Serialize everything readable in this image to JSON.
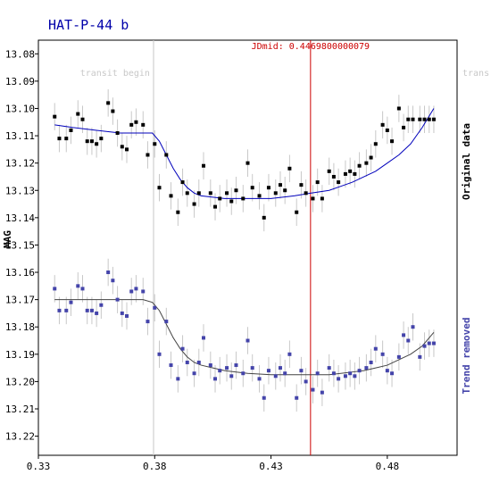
{
  "chart_data": {
    "type": "scatter",
    "title": "HAT-P-44 b",
    "ylabel": "MAG",
    "xlim": [
      0.33,
      0.51
    ],
    "ylim": [
      13.075,
      13.227
    ],
    "y_inverted": true,
    "x_ticks": [
      "0.33",
      "0.38",
      "0.43",
      "0.48"
    ],
    "x_tick_values": [
      0.33,
      0.38,
      0.43,
      0.48
    ],
    "y_ticks": [
      "13.08",
      "13.09",
      "13.10",
      "13.11",
      "13.12",
      "13.13",
      "13.14",
      "13.15",
      "13.16",
      "13.17",
      "13.18",
      "13.19",
      "13.20",
      "13.21",
      "13.22"
    ],
    "y_tick_values": [
      13.08,
      13.09,
      13.1,
      13.11,
      13.12,
      13.13,
      13.14,
      13.15,
      13.16,
      13.17,
      13.18,
      13.19,
      13.2,
      13.21,
      13.22
    ],
    "vlines": [
      {
        "name": "transit begin",
        "label": "transit begin",
        "x": 0.3795,
        "color": "#c8c8c8"
      },
      {
        "name": "JDmid",
        "label": "JDmid: 0.4469800000079",
        "x": 0.447,
        "color": "#cc0000"
      },
      {
        "name": "transit end",
        "label": "trans",
        "x": 0.5135,
        "color": "#c8c8c8"
      }
    ],
    "series": [
      {
        "name": "Original data",
        "color": "#000000",
        "fit_color": "#0000bb",
        "x": [
          0.337,
          0.339,
          0.342,
          0.344,
          0.347,
          0.349,
          0.351,
          0.353,
          0.355,
          0.357,
          0.36,
          0.362,
          0.364,
          0.366,
          0.368,
          0.37,
          0.372,
          0.375,
          0.377,
          0.38,
          0.382,
          0.385,
          0.387,
          0.39,
          0.392,
          0.394,
          0.397,
          0.399,
          0.401,
          0.404,
          0.406,
          0.408,
          0.411,
          0.413,
          0.415,
          0.418,
          0.42,
          0.422,
          0.425,
          0.427,
          0.429,
          0.432,
          0.434,
          0.436,
          0.438,
          0.441,
          0.443,
          0.445,
          0.448,
          0.45,
          0.452,
          0.455,
          0.457,
          0.459,
          0.462,
          0.464,
          0.466,
          0.468,
          0.471,
          0.473,
          0.475,
          0.478,
          0.48,
          0.482,
          0.485,
          0.487,
          0.489,
          0.491,
          0.494,
          0.496,
          0.498,
          0.5
        ],
        "values": [
          13.103,
          13.111,
          13.111,
          13.108,
          13.102,
          13.104,
          13.112,
          13.112,
          13.113,
          13.111,
          13.098,
          13.101,
          13.109,
          13.114,
          13.115,
          13.106,
          13.105,
          13.106,
          13.117,
          13.113,
          13.129,
          13.117,
          13.132,
          13.138,
          13.127,
          13.131,
          13.135,
          13.131,
          13.121,
          13.131,
          13.136,
          13.133,
          13.131,
          13.134,
          13.13,
          13.133,
          13.12,
          13.129,
          13.132,
          13.14,
          13.129,
          13.131,
          13.128,
          13.13,
          13.122,
          13.138,
          13.128,
          13.131,
          13.133,
          13.127,
          13.133,
          13.123,
          13.125,
          13.127,
          13.124,
          13.123,
          13.124,
          13.121,
          13.12,
          13.118,
          13.113,
          13.106,
          13.108,
          13.112,
          13.1,
          13.107,
          13.104,
          13.104,
          13.104,
          13.104,
          13.104,
          13.104
        ],
        "errors": [
          0.005,
          0.005,
          0.005,
          0.005,
          0.005,
          0.005,
          0.005,
          0.005,
          0.005,
          0.005,
          0.005,
          0.005,
          0.005,
          0.005,
          0.005,
          0.005,
          0.005,
          0.005,
          0.005,
          0.005,
          0.005,
          0.005,
          0.005,
          0.005,
          0.005,
          0.005,
          0.005,
          0.005,
          0.005,
          0.005,
          0.005,
          0.005,
          0.005,
          0.005,
          0.005,
          0.005,
          0.005,
          0.005,
          0.005,
          0.005,
          0.005,
          0.005,
          0.005,
          0.005,
          0.005,
          0.005,
          0.005,
          0.005,
          0.005,
          0.005,
          0.005,
          0.005,
          0.005,
          0.005,
          0.005,
          0.005,
          0.005,
          0.005,
          0.005,
          0.005,
          0.005,
          0.005,
          0.005,
          0.005,
          0.005,
          0.005,
          0.005,
          0.005,
          0.005,
          0.005,
          0.005,
          0.005
        ],
        "fit_x": [
          0.337,
          0.345,
          0.355,
          0.365,
          0.375,
          0.379,
          0.382,
          0.385,
          0.388,
          0.391,
          0.394,
          0.397,
          0.4,
          0.405,
          0.41,
          0.42,
          0.43,
          0.44,
          0.447,
          0.455,
          0.46,
          0.465,
          0.47,
          0.475,
          0.48,
          0.485,
          0.49,
          0.495,
          0.5
        ],
        "fit_values": [
          13.106,
          13.107,
          13.108,
          13.109,
          13.109,
          13.109,
          13.112,
          13.117,
          13.122,
          13.126,
          13.129,
          13.131,
          13.132,
          13.1325,
          13.133,
          13.133,
          13.133,
          13.132,
          13.131,
          13.13,
          13.1285,
          13.127,
          13.125,
          13.123,
          13.12,
          13.117,
          13.113,
          13.107,
          13.1
        ]
      },
      {
        "name": "Trend removed",
        "color": "#4444aa",
        "fit_color": "#444444",
        "x": [
          0.337,
          0.339,
          0.342,
          0.344,
          0.347,
          0.349,
          0.351,
          0.353,
          0.355,
          0.357,
          0.36,
          0.362,
          0.364,
          0.366,
          0.368,
          0.37,
          0.372,
          0.375,
          0.377,
          0.38,
          0.382,
          0.385,
          0.387,
          0.39,
          0.392,
          0.394,
          0.397,
          0.399,
          0.401,
          0.404,
          0.406,
          0.408,
          0.411,
          0.413,
          0.415,
          0.418,
          0.42,
          0.422,
          0.425,
          0.427,
          0.429,
          0.432,
          0.434,
          0.436,
          0.438,
          0.441,
          0.443,
          0.445,
          0.448,
          0.45,
          0.452,
          0.455,
          0.457,
          0.459,
          0.462,
          0.464,
          0.466,
          0.468,
          0.471,
          0.473,
          0.475,
          0.478,
          0.48,
          0.482,
          0.485,
          0.487,
          0.489,
          0.491,
          0.494,
          0.496,
          0.498,
          0.5
        ],
        "values": [
          13.166,
          13.174,
          13.174,
          13.171,
          13.165,
          13.166,
          13.174,
          13.174,
          13.175,
          13.172,
          13.16,
          13.163,
          13.17,
          13.175,
          13.176,
          13.167,
          13.166,
          13.167,
          13.178,
          13.173,
          13.19,
          13.178,
          13.194,
          13.199,
          13.188,
          13.193,
          13.197,
          13.193,
          13.184,
          13.194,
          13.199,
          13.196,
          13.195,
          13.198,
          13.194,
          13.197,
          13.185,
          13.195,
          13.199,
          13.206,
          13.196,
          13.198,
          13.195,
          13.197,
          13.19,
          13.206,
          13.196,
          13.2,
          13.203,
          13.197,
          13.204,
          13.195,
          13.197,
          13.199,
          13.198,
          13.197,
          13.198,
          13.196,
          13.195,
          13.193,
          13.188,
          13.19,
          13.196,
          13.197,
          13.191,
          13.183,
          13.185,
          13.18,
          13.191,
          13.187,
          13.186,
          13.186
        ],
        "errors": [
          0.005,
          0.005,
          0.005,
          0.005,
          0.005,
          0.005,
          0.005,
          0.005,
          0.005,
          0.005,
          0.005,
          0.005,
          0.005,
          0.005,
          0.005,
          0.005,
          0.005,
          0.005,
          0.005,
          0.005,
          0.005,
          0.005,
          0.005,
          0.005,
          0.005,
          0.005,
          0.005,
          0.005,
          0.005,
          0.005,
          0.005,
          0.005,
          0.005,
          0.005,
          0.005,
          0.005,
          0.005,
          0.005,
          0.005,
          0.005,
          0.005,
          0.005,
          0.005,
          0.005,
          0.005,
          0.005,
          0.005,
          0.005,
          0.005,
          0.005,
          0.005,
          0.005,
          0.005,
          0.005,
          0.005,
          0.005,
          0.005,
          0.005,
          0.005,
          0.005,
          0.005,
          0.005,
          0.005,
          0.005,
          0.005,
          0.005,
          0.005,
          0.005,
          0.005,
          0.005,
          0.005,
          0.005
        ],
        "fit_x": [
          0.337,
          0.345,
          0.355,
          0.365,
          0.375,
          0.379,
          0.382,
          0.385,
          0.388,
          0.391,
          0.394,
          0.397,
          0.4,
          0.405,
          0.41,
          0.42,
          0.43,
          0.44,
          0.447,
          0.455,
          0.46,
          0.465,
          0.47,
          0.475,
          0.48,
          0.485,
          0.49,
          0.495,
          0.5
        ],
        "fit_values": [
          13.17,
          13.17,
          13.17,
          13.17,
          13.17,
          13.171,
          13.174,
          13.179,
          13.184,
          13.188,
          13.191,
          13.193,
          13.194,
          13.195,
          13.196,
          13.197,
          13.1975,
          13.1975,
          13.1975,
          13.1975,
          13.197,
          13.1965,
          13.196,
          13.195,
          13.194,
          13.192,
          13.19,
          13.187,
          13.182
        ]
      }
    ]
  }
}
